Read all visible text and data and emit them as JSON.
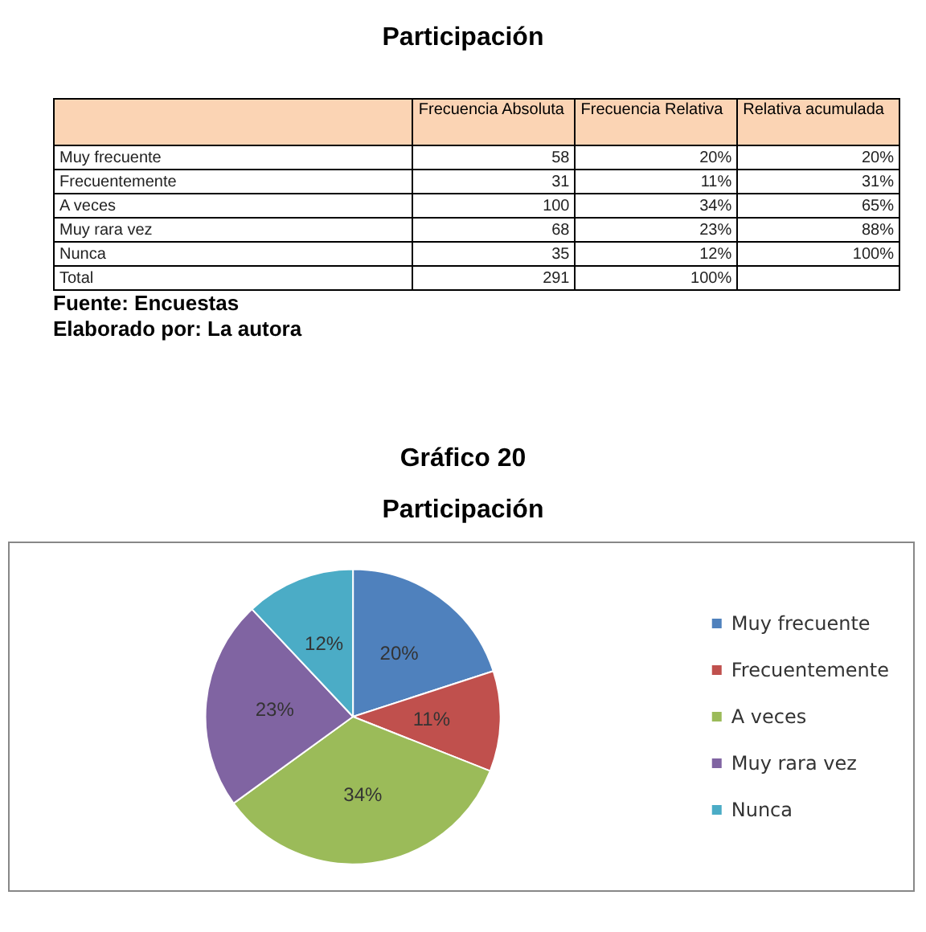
{
  "chart_data": [
    {
      "type": "other",
      "title": "Participación",
      "categories": [
        "Frecuencia Absoluta",
        "Frecuencia Relativa",
        "Relativa acumulada"
      ],
      "y_categories": [
        "Muy frecuente",
        "Frecuentemente",
        "A veces",
        "Muy rara vez",
        "Nunca",
        "Total"
      ],
      "cell_labels": [
        [
          "58",
          "20%",
          "20%"
        ],
        [
          "31",
          "11%",
          "31%"
        ],
        [
          "100",
          "34%",
          "65%"
        ],
        [
          "68",
          "23%",
          "88%"
        ],
        [
          "35",
          "12%",
          "100%"
        ],
        [
          "291",
          "100%",
          null
        ]
      ],
      "annotations": [
        "Fuente: Encuestas",
        "Elaborado por: La autora"
      ]
    },
    {
      "type": "pie",
      "title": "Gráfico 20",
      "subtitle": "Participación",
      "categories": [
        "Muy frecuente",
        "Frecuentemente",
        "A veces",
        "Muy rara vez",
        "Nunca"
      ],
      "values": [
        20,
        11,
        34,
        23,
        12
      ],
      "colors": [
        "#4f81bd",
        "#c0504d",
        "#9bbb59",
        "#8064a2",
        "#4bacc6"
      ],
      "value_labels": [
        "20%",
        "11%",
        "34%",
        "23%",
        "12%"
      ],
      "legend": "right"
    }
  ]
}
